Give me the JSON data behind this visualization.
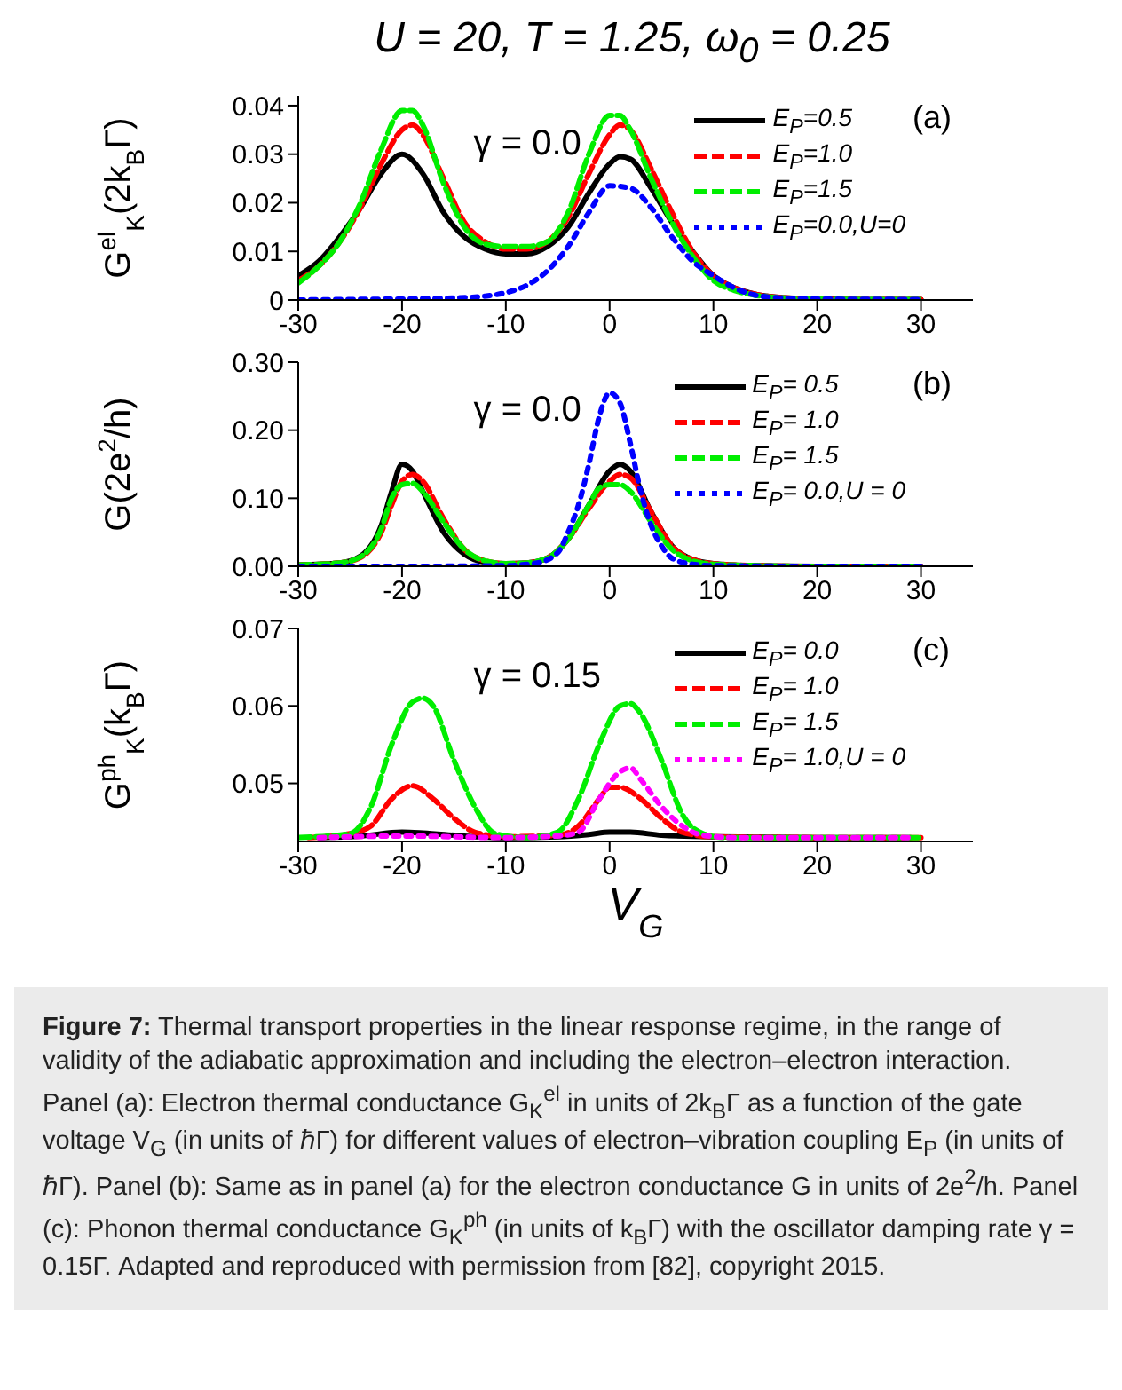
{
  "chart_data": [
    {
      "type": "line",
      "title": "U = 20, T = 1.25, ω$_{0}$ = 0.25",
      "ylabel": "G$^{el}$$_{K}$(2k$_{B}$Γ)",
      "xlim": [
        -30,
        35
      ],
      "xticks": [
        -30,
        -20,
        -10,
        0,
        10,
        20,
        30
      ],
      "ylim": [
        0,
        0.042
      ],
      "yticks": [
        0.0,
        0.01,
        0.02,
        0.03,
        0.04
      ],
      "legend": "top right",
      "annotations": [
        "γ = 0.0",
        "(a)"
      ],
      "series": [
        {
          "name": "E$_{P}$=0.5",
          "color": "#000000",
          "line_style": "solid",
          "x": [
            -30,
            -28,
            -26,
            -24,
            -22,
            -20,
            -18,
            -16,
            -14,
            -12,
            -10,
            -8,
            -6,
            -4,
            -2,
            0,
            1,
            2,
            4,
            6,
            8,
            10,
            12,
            14,
            16,
            20,
            25,
            30
          ],
          "values": [
            0.005,
            0.008,
            0.013,
            0.019,
            0.026,
            0.03,
            0.026,
            0.018,
            0.013,
            0.0105,
            0.0095,
            0.0095,
            0.011,
            0.015,
            0.022,
            0.028,
            0.0295,
            0.029,
            0.023,
            0.016,
            0.01,
            0.005,
            0.0025,
            0.0012,
            0.0006,
            0.0002,
            0.0001,
            0.0001
          ]
        },
        {
          "name": "E$_{P}$=1.0",
          "color": "#ff0000",
          "line_style": "dashed",
          "x": [
            -30,
            -28,
            -26,
            -24,
            -22,
            -20,
            -19,
            -18,
            -16,
            -14,
            -12,
            -10,
            -8,
            -6,
            -4,
            -2,
            0,
            1,
            2,
            4,
            6,
            8,
            10,
            12,
            14,
            16,
            20,
            25,
            30
          ],
          "values": [
            0.004,
            0.007,
            0.012,
            0.019,
            0.028,
            0.035,
            0.036,
            0.034,
            0.025,
            0.016,
            0.012,
            0.0105,
            0.0105,
            0.012,
            0.017,
            0.026,
            0.034,
            0.036,
            0.035,
            0.027,
            0.018,
            0.01,
            0.005,
            0.0025,
            0.0012,
            0.0006,
            0.0002,
            0.0001,
            0.0001
          ]
        },
        {
          "name": "E$_{P}$=1.5",
          "color": "#00ee00",
          "line_style": "dashed",
          "x": [
            -30,
            -28,
            -26,
            -24,
            -22,
            -20,
            -19,
            -18,
            -16,
            -14,
            -12,
            -10,
            -8,
            -6,
            -4,
            -2,
            0,
            1,
            2,
            4,
            6,
            8,
            10,
            12,
            14,
            16,
            20,
            25,
            30
          ],
          "values": [
            0.0035,
            0.007,
            0.012,
            0.02,
            0.031,
            0.039,
            0.039,
            0.036,
            0.024,
            0.015,
            0.0115,
            0.011,
            0.011,
            0.012,
            0.018,
            0.03,
            0.038,
            0.038,
            0.035,
            0.025,
            0.016,
            0.009,
            0.004,
            0.002,
            0.001,
            0.0005,
            0.0002,
            0.0001,
            0.0001
          ]
        },
        {
          "name": "E$_{P}$=0.0,U=0",
          "color": "#0000ff",
          "line_style": "dotted",
          "x": [
            -30,
            -25,
            -20,
            -15,
            -12,
            -10,
            -8,
            -6,
            -4,
            -2,
            0,
            2,
            4,
            6,
            8,
            10,
            12,
            14,
            16,
            20,
            30
          ],
          "values": [
            0.0,
            0.0001,
            0.0002,
            0.0004,
            0.0008,
            0.0015,
            0.003,
            0.006,
            0.011,
            0.018,
            0.0235,
            0.023,
            0.019,
            0.013,
            0.008,
            0.005,
            0.0025,
            0.001,
            0.0005,
            0.0002,
            0.0001
          ]
        }
      ]
    },
    {
      "type": "line",
      "ylabel": "G(2e$^{2}$/h)",
      "xlim": [
        -30,
        35
      ],
      "xticks": [
        -30,
        -20,
        -10,
        0,
        10,
        20,
        30
      ],
      "ylim": [
        0,
        0.3
      ],
      "yticks": [
        {
          "value": 0,
          "label": "0.00"
        },
        {
          "value": 0.1,
          "label": "0.10"
        },
        {
          "value": 0.2,
          "label": "0.20"
        },
        {
          "value": 0.3,
          "label": "0.30"
        }
      ],
      "legend": "top right",
      "annotations": [
        "γ = 0.0",
        "(b)"
      ],
      "series": [
        {
          "name": "E$_{P}$= 0.5",
          "color": "#000000",
          "line_style": "solid",
          "x": [
            -30,
            -26,
            -24,
            -22,
            -21,
            -20,
            -19,
            -18,
            -16,
            -14,
            -12,
            -10,
            -8,
            -6,
            -4,
            -2,
            0,
            1,
            2,
            4,
            6,
            8,
            10,
            14,
            20,
            30
          ],
          "values": [
            0.002,
            0.005,
            0.015,
            0.06,
            0.11,
            0.15,
            0.14,
            0.11,
            0.05,
            0.018,
            0.006,
            0.004,
            0.005,
            0.012,
            0.04,
            0.09,
            0.14,
            0.15,
            0.14,
            0.08,
            0.03,
            0.01,
            0.004,
            0.001,
            0.0,
            0.0
          ]
        },
        {
          "name": "E$_{P}$= 1.0",
          "color": "#ff0000",
          "line_style": "dashed",
          "x": [
            -30,
            -26,
            -24,
            -22,
            -21,
            -20,
            -19,
            -18,
            -16,
            -14,
            -12,
            -10,
            -8,
            -6,
            -4,
            -2,
            0,
            1,
            2,
            4,
            6,
            8,
            10,
            14,
            20,
            30
          ],
          "values": [
            0.002,
            0.005,
            0.013,
            0.05,
            0.09,
            0.125,
            0.135,
            0.125,
            0.07,
            0.025,
            0.008,
            0.004,
            0.005,
            0.012,
            0.04,
            0.085,
            0.125,
            0.135,
            0.13,
            0.08,
            0.03,
            0.01,
            0.004,
            0.001,
            0.0,
            0.0
          ]
        },
        {
          "name": "E$_{P}$= 1.5",
          "color": "#00ee00",
          "line_style": "dashed",
          "x": [
            -30,
            -26,
            -24,
            -22,
            -21,
            -20,
            -19,
            -18,
            -16,
            -14,
            -12,
            -10,
            -8,
            -6,
            -4,
            -2,
            -1,
            0,
            1,
            2,
            4,
            6,
            8,
            10,
            14,
            20,
            30
          ],
          "values": [
            0.002,
            0.005,
            0.014,
            0.055,
            0.1,
            0.12,
            0.122,
            0.11,
            0.065,
            0.025,
            0.008,
            0.004,
            0.005,
            0.012,
            0.04,
            0.09,
            0.115,
            0.12,
            0.12,
            0.11,
            0.065,
            0.025,
            0.008,
            0.003,
            0.001,
            0.0,
            0.0
          ]
        },
        {
          "name": "E$_{P}$= 0.0,U = 0",
          "color": "#0000ff",
          "line_style": "dotted",
          "x": [
            -30,
            -20,
            -10,
            -7,
            -5,
            -4,
            -3,
            -2,
            -1,
            0,
            1,
            2,
            3,
            4,
            5,
            6,
            8,
            10,
            20,
            30
          ],
          "values": [
            0.0,
            0.0,
            0.001,
            0.005,
            0.02,
            0.05,
            0.09,
            0.15,
            0.22,
            0.255,
            0.24,
            0.18,
            0.11,
            0.06,
            0.03,
            0.012,
            0.003,
            0.001,
            0.0,
            0.0
          ]
        }
      ]
    },
    {
      "type": "line",
      "ylabel": "G$^{ph}$$_{K}$(k$_{B}$Γ)",
      "xlabel": "V$_{G}$",
      "xlim": [
        -30,
        35
      ],
      "xticks": [
        -30,
        -20,
        -10,
        0,
        10,
        20,
        30
      ],
      "ylim": [
        0.0425,
        0.07
      ],
      "yticks": [
        {
          "value": 0.05,
          "label": "0.05"
        },
        {
          "value": 0.06,
          "label": "0.06"
        },
        {
          "value": 0.07,
          "label": "0.07"
        }
      ],
      "legend": "top right",
      "annotations": [
        "γ = 0.15",
        "(c)",
        "Figure 7: Thermal transport properties in the linear response regime, in the range of validity of the adiabatic approximation and including the electron–electron interaction. Panel (a): Electron thermal conductance G$_{K}$$^{el}$ in units of 2k$_{B}$Γ as a function of the gate voltage V$_{G}$ (in units of ℏΓ) for different values of electron–vibration coupling E$_{P}$ (in units of ℏΓ). Panel (b): Same as in panel (a) for the electron conductance G in units of 2e$^{2}$/h. Panel (c): Phonon thermal conductance G$_{K}$$^{ph}$ (in units of k$_{B}$Γ) with the oscillator damping rate γ = 0.15Γ. Adapted and reproduced with permission from [82], copyright 2015."
      ],
      "series": [
        {
          "name": "E$_{P}$= 0.0",
          "color": "#000000",
          "line_style": "solid",
          "x": [
            -28,
            -24,
            -20,
            -18,
            -14,
            -10,
            -5,
            -2,
            0,
            2,
            5,
            10,
            20,
            29
          ],
          "values": [
            0.043,
            0.0432,
            0.0437,
            0.0436,
            0.0432,
            0.043,
            0.0431,
            0.0434,
            0.0437,
            0.0437,
            0.0433,
            0.0431,
            0.043,
            0.043
          ]
        },
        {
          "name": "E$_{P}$= 1.0",
          "color": "#ff0000",
          "line_style": "dashed",
          "x": [
            -29,
            -25,
            -23,
            -21,
            -19,
            -17,
            -15,
            -13,
            -10,
            -5,
            -3,
            -1,
            0,
            1,
            3,
            5,
            7,
            10,
            20,
            30
          ],
          "values": [
            0.043,
            0.0435,
            0.0445,
            0.048,
            0.0497,
            0.048,
            0.0455,
            0.0437,
            0.0431,
            0.0433,
            0.0445,
            0.048,
            0.0495,
            0.0495,
            0.048,
            0.0455,
            0.0437,
            0.0431,
            0.043,
            0.043
          ]
        },
        {
          "name": "E$_{P}$= 1.5",
          "color": "#00ee00",
          "line_style": "dashed",
          "x": [
            -30,
            -25,
            -23,
            -21,
            -19,
            -18,
            -17,
            -15,
            -13,
            -11,
            -8,
            -5,
            -3,
            -1,
            1,
            2,
            3,
            5,
            7,
            9,
            11,
            30
          ],
          "values": [
            0.043,
            0.0435,
            0.047,
            0.055,
            0.0605,
            0.061,
            0.06,
            0.053,
            0.047,
            0.0435,
            0.043,
            0.0437,
            0.048,
            0.055,
            0.06,
            0.0603,
            0.059,
            0.053,
            0.046,
            0.0435,
            0.043,
            0.043
          ]
        },
        {
          "name": "E$_{P}$= 1.0,U = 0",
          "color": "#ff00ff",
          "line_style": "dotted",
          "x": [
            -28,
            -20,
            -10,
            -5,
            -3,
            -1,
            1,
            2,
            3,
            5,
            7,
            9,
            12,
            29
          ],
          "values": [
            0.043,
            0.0432,
            0.043,
            0.0432,
            0.0437,
            0.048,
            0.0515,
            0.052,
            0.0505,
            0.047,
            0.0445,
            0.0433,
            0.043,
            0.043
          ]
        }
      ]
    }
  ]
}
